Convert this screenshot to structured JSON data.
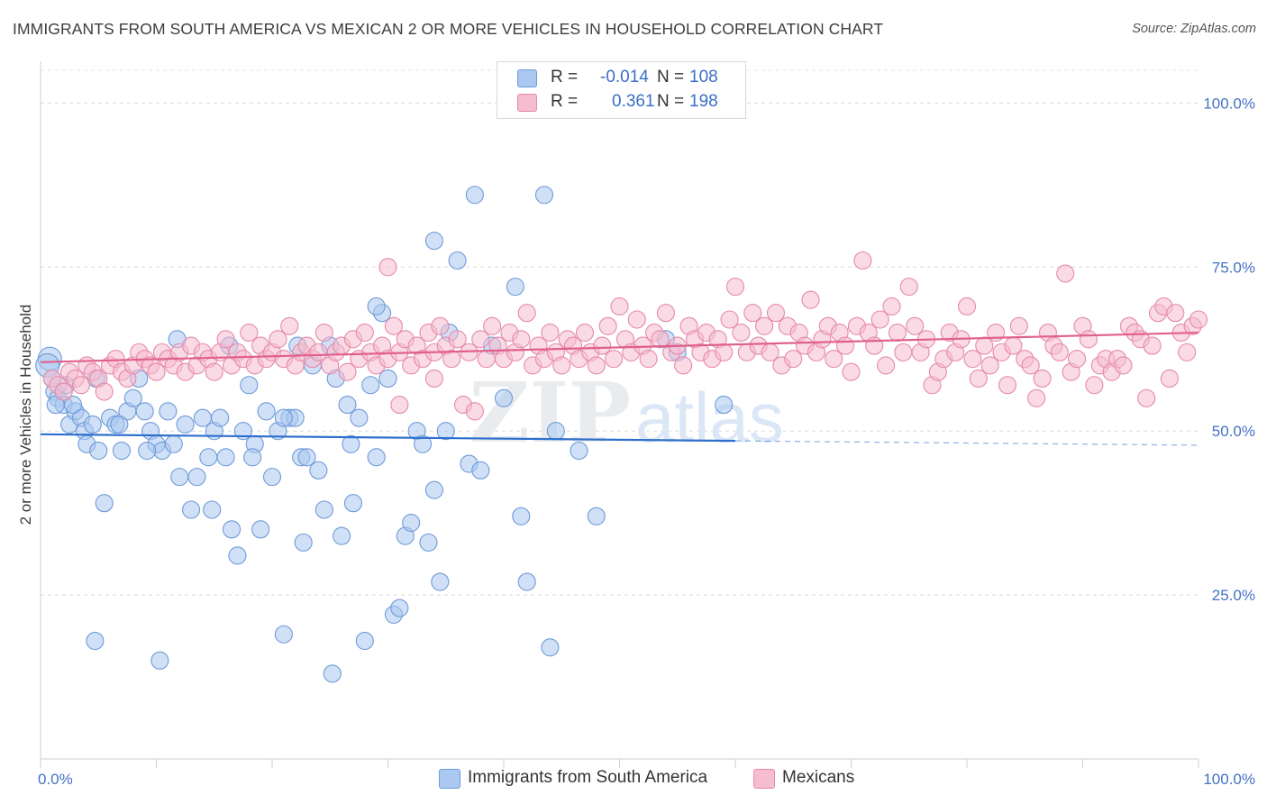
{
  "title": "IMMIGRANTS FROM SOUTH AMERICA VS MEXICAN 2 OR MORE VEHICLES IN HOUSEHOLD CORRELATION CHART",
  "source": "Source: ZipAtlas.com",
  "watermark": "ZIPatlas",
  "legend": {
    "rows": [
      {
        "r_label": "R =",
        "r_value": "-0.014",
        "n_label": "N =",
        "n_value": "108",
        "color": "#aac8f0",
        "border": "#6f9ad8"
      },
      {
        "r_label": "R =",
        "r_value": "0.361",
        "n_label": "N =",
        "n_value": "198",
        "color": "#f6bcd0",
        "border": "#e58aa8"
      }
    ]
  },
  "bottom_legend": [
    {
      "label": "Immigrants from South America",
      "color": "#aac8f0",
      "border": "#6f9ad8"
    },
    {
      "label": "Mexicans",
      "color": "#f6bcd0",
      "border": "#e58aa8"
    }
  ],
  "chart_data": {
    "type": "scatter",
    "ylabel": "2 or more Vehicles in Household",
    "xlabel": "",
    "xlim": [
      0,
      100
    ],
    "ylim": [
      0,
      105
    ],
    "x_tick_labels": [
      "0.0%",
      "100.0%"
    ],
    "y_tick_labels": [
      "25.0%",
      "50.0%",
      "75.0%",
      "100.0%"
    ],
    "y_ticks": [
      25,
      50,
      75,
      100
    ],
    "grid": true,
    "series": [
      {
        "name": "Immigrants from South America",
        "color": "#6f9ad8",
        "fill": "#aac8f0",
        "trend_color": "#2f6fcc",
        "trend": {
          "x0": 0,
          "y0": 49.5,
          "x1": 60,
          "y1": 48.5,
          "dash_to": 100
        },
        "points": [
          [
            0.8,
            61
          ],
          [
            0.6,
            60
          ],
          [
            1.2,
            56
          ],
          [
            1.5,
            55
          ],
          [
            2,
            54
          ],
          [
            2.2,
            57
          ],
          [
            2.5,
            51
          ],
          [
            3,
            53
          ],
          [
            3.5,
            52
          ],
          [
            3.8,
            50
          ],
          [
            4,
            48
          ],
          [
            4.5,
            51
          ],
          [
            4.8,
            58
          ],
          [
            5,
            47
          ],
          [
            5.5,
            39
          ],
          [
            6,
            52
          ],
          [
            6.5,
            51
          ],
          [
            7,
            47
          ],
          [
            7.5,
            53
          ],
          [
            8,
            55
          ],
          [
            8.5,
            58
          ],
          [
            9,
            53
          ],
          [
            9.5,
            50
          ],
          [
            10,
            48
          ],
          [
            10.5,
            47
          ],
          [
            11,
            53
          ],
          [
            11.5,
            48
          ],
          [
            12,
            43
          ],
          [
            12.5,
            51
          ],
          [
            13,
            38
          ],
          [
            13.5,
            43
          ],
          [
            14,
            52
          ],
          [
            14.5,
            46
          ],
          [
            15,
            50
          ],
          [
            15.5,
            52
          ],
          [
            16,
            46
          ],
          [
            16.5,
            35
          ],
          [
            17,
            31
          ],
          [
            17.5,
            50
          ],
          [
            18,
            57
          ],
          [
            18.5,
            48
          ],
          [
            19,
            35
          ],
          [
            19.5,
            53
          ],
          [
            20,
            43
          ],
          [
            20.5,
            50
          ],
          [
            21,
            19
          ],
          [
            21.5,
            52
          ],
          [
            22,
            52
          ],
          [
            22.5,
            46
          ],
          [
            23,
            46
          ],
          [
            23.5,
            60
          ],
          [
            24,
            44
          ],
          [
            24.5,
            38
          ],
          [
            25,
            63
          ],
          [
            25.5,
            58
          ],
          [
            26,
            34
          ],
          [
            26.5,
            54
          ],
          [
            27,
            39
          ],
          [
            27.5,
            52
          ],
          [
            28,
            18
          ],
          [
            28.5,
            57
          ],
          [
            29,
            46
          ],
          [
            29.5,
            68
          ],
          [
            30,
            58
          ],
          [
            30.5,
            22
          ],
          [
            31,
            23
          ],
          [
            31.5,
            34
          ],
          [
            32,
            36
          ],
          [
            32.5,
            50
          ],
          [
            33,
            48
          ],
          [
            33.5,
            33
          ],
          [
            34,
            41
          ],
          [
            34.5,
            27
          ],
          [
            35,
            50
          ],
          [
            36,
            76
          ],
          [
            37,
            45
          ],
          [
            37.5,
            86
          ],
          [
            38,
            44
          ],
          [
            39,
            63
          ],
          [
            40,
            55
          ],
          [
            41,
            72
          ],
          [
            41.5,
            37
          ],
          [
            42,
            27
          ],
          [
            43.5,
            86
          ],
          [
            44,
            17
          ],
          [
            44.5,
            50
          ],
          [
            46.5,
            47
          ],
          [
            48,
            37
          ],
          [
            54,
            64
          ],
          [
            55,
            62
          ],
          [
            59,
            54
          ],
          [
            1,
            58
          ],
          [
            1.3,
            54
          ],
          [
            2.8,
            54
          ],
          [
            6.8,
            51
          ],
          [
            9.2,
            47
          ],
          [
            11.8,
            64
          ],
          [
            16.3,
            63
          ],
          [
            22.2,
            63
          ],
          [
            29,
            69
          ],
          [
            34,
            79
          ],
          [
            35.3,
            65
          ],
          [
            21,
            52
          ],
          [
            18.3,
            46
          ],
          [
            26.8,
            48
          ],
          [
            22.7,
            33
          ],
          [
            10.3,
            15
          ],
          [
            4.7,
            18
          ],
          [
            25.2,
            13
          ],
          [
            14.8,
            38
          ]
        ]
      },
      {
        "name": "Mexicans",
        "color": "#e58aa8",
        "fill": "#f6bcd0",
        "trend_color": "#e0608c",
        "trend": {
          "x0": 0,
          "y0": 60.5,
          "x1": 100,
          "y1": 65
        },
        "points": [
          [
            1,
            58
          ],
          [
            1.5,
            57
          ],
          [
            2,
            56
          ],
          [
            2.5,
            59
          ],
          [
            3,
            58
          ],
          [
            3.5,
            57
          ],
          [
            4,
            60
          ],
          [
            4.5,
            59
          ],
          [
            5,
            58
          ],
          [
            5.5,
            56
          ],
          [
            6,
            60
          ],
          [
            6.5,
            61
          ],
          [
            7,
            59
          ],
          [
            7.5,
            58
          ],
          [
            8,
            60
          ],
          [
            8.5,
            62
          ],
          [
            9,
            61
          ],
          [
            9.5,
            60
          ],
          [
            10,
            59
          ],
          [
            10.5,
            62
          ],
          [
            11,
            61
          ],
          [
            11.5,
            60
          ],
          [
            12,
            62
          ],
          [
            12.5,
            59
          ],
          [
            13,
            63
          ],
          [
            13.5,
            60
          ],
          [
            14,
            62
          ],
          [
            14.5,
            61
          ],
          [
            15,
            59
          ],
          [
            15.5,
            62
          ],
          [
            16,
            64
          ],
          [
            16.5,
            60
          ],
          [
            17,
            62
          ],
          [
            17.5,
            61
          ],
          [
            18,
            65
          ],
          [
            18.5,
            60
          ],
          [
            19,
            63
          ],
          [
            19.5,
            61
          ],
          [
            20,
            62
          ],
          [
            20.5,
            64
          ],
          [
            21,
            61
          ],
          [
            21.5,
            66
          ],
          [
            22,
            60
          ],
          [
            22.5,
            62
          ],
          [
            23,
            63
          ],
          [
            23.5,
            61
          ],
          [
            24,
            62
          ],
          [
            24.5,
            65
          ],
          [
            25,
            60
          ],
          [
            25.5,
            62
          ],
          [
            26,
            63
          ],
          [
            26.5,
            59
          ],
          [
            27,
            64
          ],
          [
            27.5,
            61
          ],
          [
            28,
            65
          ],
          [
            28.5,
            62
          ],
          [
            29,
            60
          ],
          [
            29.5,
            63
          ],
          [
            30,
            61
          ],
          [
            30.5,
            66
          ],
          [
            31,
            62
          ],
          [
            31.5,
            64
          ],
          [
            32,
            60
          ],
          [
            32.5,
            63
          ],
          [
            33,
            61
          ],
          [
            33.5,
            65
          ],
          [
            34,
            62
          ],
          [
            34.5,
            66
          ],
          [
            35,
            63
          ],
          [
            35.5,
            61
          ],
          [
            36,
            64
          ],
          [
            36.5,
            54
          ],
          [
            37,
            62
          ],
          [
            37.5,
            53
          ],
          [
            38,
            64
          ],
          [
            38.5,
            61
          ],
          [
            39,
            66
          ],
          [
            39.5,
            63
          ],
          [
            40,
            61
          ],
          [
            40.5,
            65
          ],
          [
            41,
            62
          ],
          [
            41.5,
            64
          ],
          [
            42,
            68
          ],
          [
            42.5,
            60
          ],
          [
            43,
            63
          ],
          [
            43.5,
            61
          ],
          [
            44,
            65
          ],
          [
            44.5,
            62
          ],
          [
            45,
            60
          ],
          [
            45.5,
            64
          ],
          [
            46,
            63
          ],
          [
            46.5,
            61
          ],
          [
            47,
            65
          ],
          [
            47.5,
            62
          ],
          [
            48,
            60
          ],
          [
            48.5,
            63
          ],
          [
            49,
            66
          ],
          [
            49.5,
            61
          ],
          [
            50,
            69
          ],
          [
            50.5,
            64
          ],
          [
            51,
            62
          ],
          [
            51.5,
            67
          ],
          [
            52,
            63
          ],
          [
            52.5,
            61
          ],
          [
            53,
            65
          ],
          [
            53.5,
            64
          ],
          [
            54,
            68
          ],
          [
            54.5,
            62
          ],
          [
            55,
            63
          ],
          [
            55.5,
            60
          ],
          [
            56,
            66
          ],
          [
            56.5,
            64
          ],
          [
            57,
            62
          ],
          [
            57.5,
            65
          ],
          [
            58,
            61
          ],
          [
            58.5,
            64
          ],
          [
            59,
            62
          ],
          [
            59.5,
            67
          ],
          [
            60,
            72
          ],
          [
            60.5,
            65
          ],
          [
            61,
            62
          ],
          [
            61.5,
            68
          ],
          [
            62,
            63
          ],
          [
            62.5,
            66
          ],
          [
            63,
            62
          ],
          [
            63.5,
            68
          ],
          [
            64,
            60
          ],
          [
            64.5,
            66
          ],
          [
            65,
            61
          ],
          [
            65.5,
            65
          ],
          [
            66,
            63
          ],
          [
            66.5,
            70
          ],
          [
            67,
            62
          ],
          [
            67.5,
            64
          ],
          [
            68,
            66
          ],
          [
            68.5,
            61
          ],
          [
            69,
            65
          ],
          [
            69.5,
            63
          ],
          [
            70,
            59
          ],
          [
            70.5,
            66
          ],
          [
            71,
            76
          ],
          [
            71.5,
            65
          ],
          [
            72,
            63
          ],
          [
            72.5,
            67
          ],
          [
            73,
            60
          ],
          [
            73.5,
            69
          ],
          [
            74,
            65
          ],
          [
            74.5,
            62
          ],
          [
            75,
            72
          ],
          [
            75.5,
            66
          ],
          [
            76,
            62
          ],
          [
            76.5,
            64
          ],
          [
            77,
            57
          ],
          [
            77.5,
            59
          ],
          [
            78,
            61
          ],
          [
            78.5,
            65
          ],
          [
            79,
            62
          ],
          [
            79.5,
            64
          ],
          [
            80,
            69
          ],
          [
            80.5,
            61
          ],
          [
            81,
            58
          ],
          [
            81.5,
            63
          ],
          [
            82,
            60
          ],
          [
            82.5,
            65
          ],
          [
            83,
            62
          ],
          [
            83.5,
            57
          ],
          [
            84,
            63
          ],
          [
            84.5,
            66
          ],
          [
            85,
            61
          ],
          [
            85.5,
            60
          ],
          [
            86,
            55
          ],
          [
            86.5,
            58
          ],
          [
            87,
            65
          ],
          [
            87.5,
            63
          ],
          [
            88,
            62
          ],
          [
            88.5,
            74
          ],
          [
            89,
            59
          ],
          [
            89.5,
            61
          ],
          [
            90,
            66
          ],
          [
            90.5,
            64
          ],
          [
            91,
            57
          ],
          [
            91.5,
            60
          ],
          [
            92,
            61
          ],
          [
            92.5,
            59
          ],
          [
            93,
            61
          ],
          [
            93.5,
            60
          ],
          [
            94,
            66
          ],
          [
            94.5,
            65
          ],
          [
            95,
            64
          ],
          [
            95.5,
            55
          ],
          [
            96,
            63
          ],
          [
            96.5,
            68
          ],
          [
            97,
            69
          ],
          [
            97.5,
            58
          ],
          [
            98,
            68
          ],
          [
            98.5,
            65
          ],
          [
            99,
            62
          ],
          [
            99.5,
            66
          ],
          [
            100,
            67
          ],
          [
            30,
            75
          ],
          [
            34,
            58
          ],
          [
            31,
            54
          ]
        ]
      }
    ]
  }
}
